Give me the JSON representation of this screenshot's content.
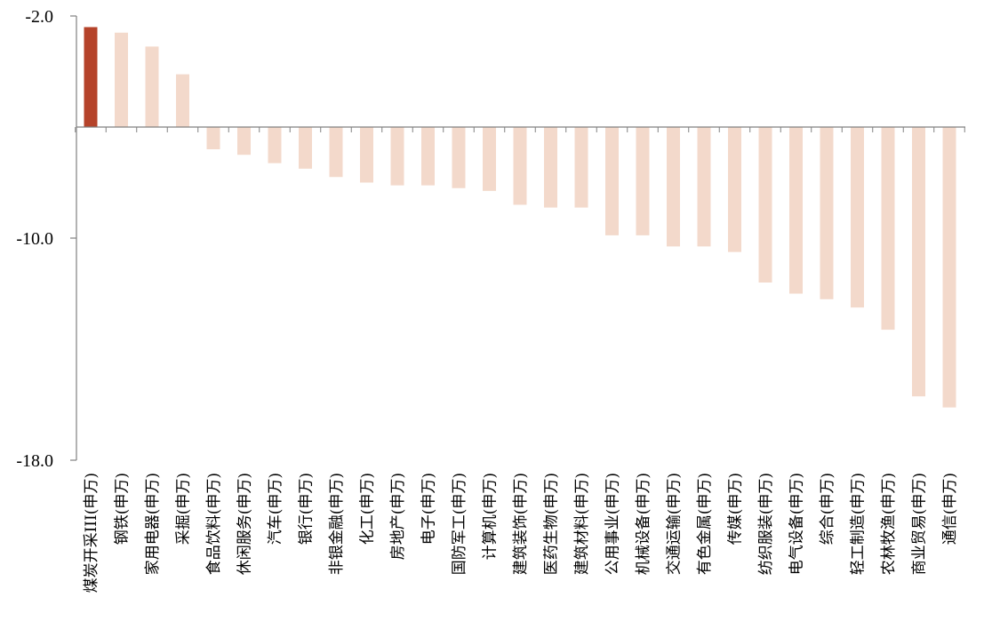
{
  "chart_data": {
    "type": "bar",
    "title": "",
    "xlabel": "",
    "ylabel": "",
    "ylim": [
      -18,
      -2
    ],
    "yticks": [
      -2,
      -10,
      -18
    ],
    "ytick_labels": [
      "-2.0",
      "-10.0",
      "-18.0"
    ],
    "baseline": -6,
    "grid": false,
    "legend": "none",
    "colors": {
      "highlight": "#b5432a",
      "default": "#f3d9cb",
      "axis": "#808080"
    },
    "categories": [
      "煤炭开采III(申万)",
      "钢铁(申万)",
      "家用电器(申万)",
      "采掘(申万)",
      "食品饮料(申万)",
      "休闲服务(申万)",
      "汽车(申万)",
      "银行(申万)",
      "非银金融(申万)",
      "化工(申万)",
      "房地产(申万)",
      "电子(申万)",
      "国防军工(申万)",
      "计算机(申万)",
      "建筑装饰(申万)",
      "医药生物(申万)",
      "建筑材料(申万)",
      "公用事业(申万)",
      "机械设备(申万)",
      "交通运输(申万)",
      "有色金属(申万)",
      "传媒(申万)",
      "纺织服装(申万)",
      "电气设备(申万)",
      "综合(申万)",
      "轻工制造(申万)",
      "农林牧渔(申万)",
      "商业贸易(申万)",
      "通信(申万)"
    ],
    "values": [
      -2.4,
      -2.6,
      -3.1,
      -4.1,
      -6.8,
      -7.0,
      -7.3,
      -7.5,
      -7.8,
      -8.0,
      -8.1,
      -8.1,
      -8.2,
      -8.3,
      -8.8,
      -8.9,
      -8.9,
      -9.9,
      -9.9,
      -10.3,
      -10.3,
      -10.5,
      -11.6,
      -12.0,
      -12.2,
      -12.5,
      -13.3,
      -15.7,
      -16.1
    ],
    "highlight_index": 0
  }
}
